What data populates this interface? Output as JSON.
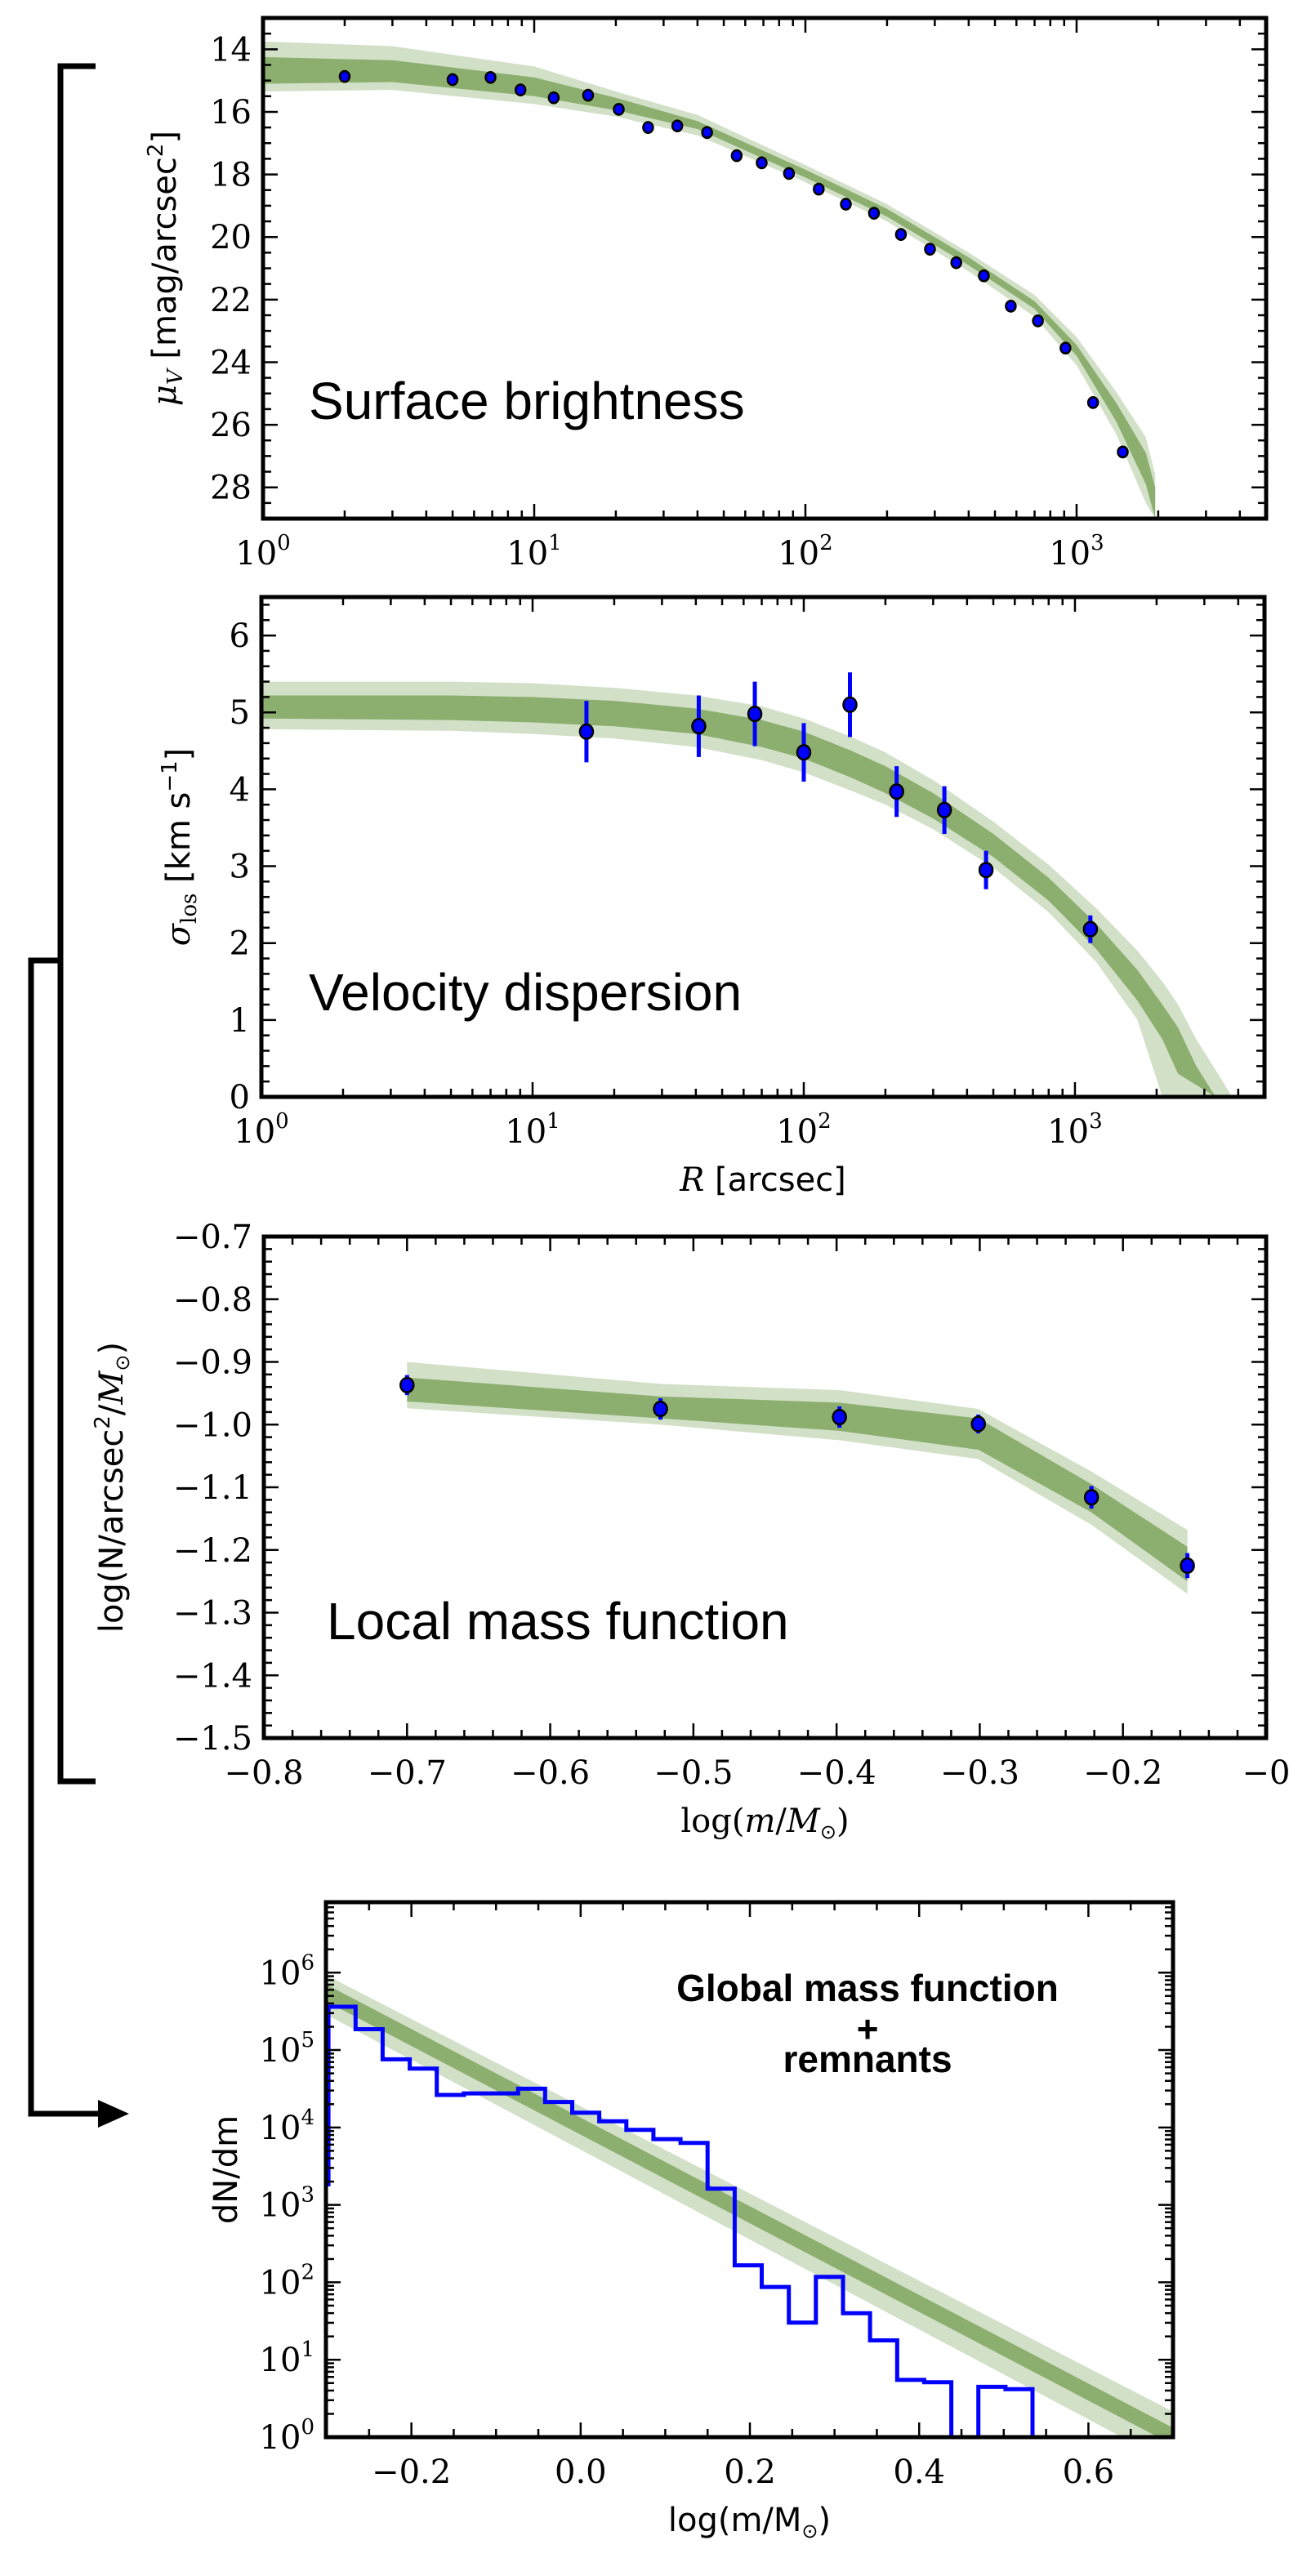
{
  "colors": {
    "band_outer": "#d2e0c8",
    "band_inner": "#8caf70",
    "points": "#0000ff",
    "histogram": "#0000ff",
    "axes": "#000000",
    "bracket": "#000000"
  },
  "chart_data": [
    {
      "id": "surface-brightness",
      "type": "scatter",
      "title": "Surface brightness",
      "xlabel": "",
      "ylabel": "μ_V [mag/arcsec²]",
      "ylabel_parts": {
        "sym": "μ",
        "sub": "V",
        "unit_pre": "[mag/arcsec",
        "unit_sup": "2",
        "unit_post": "]"
      },
      "xscale": "log",
      "xlim": [
        1,
        5000
      ],
      "ylim": [
        29,
        13
      ],
      "y_inverted": true,
      "xticks": [
        {
          "v": 1,
          "base": "10",
          "exp": "0"
        },
        {
          "v": 10,
          "base": "10",
          "exp": "1"
        },
        {
          "v": 100,
          "base": "10",
          "exp": "2"
        },
        {
          "v": 1000,
          "base": "10",
          "exp": "3"
        }
      ],
      "yticks": [
        14,
        16,
        18,
        20,
        22,
        24,
        26,
        28
      ],
      "points": {
        "x": [
          2.0,
          5.0,
          6.9,
          8.9,
          11.8,
          15.8,
          20.5,
          26.3,
          33.7,
          43.4,
          55.8,
          69,
          87,
          112,
          141,
          179,
          225,
          288,
          360,
          455,
          572,
          720,
          910,
          1150,
          1480
        ],
        "y": [
          14.87,
          14.97,
          14.9,
          15.3,
          15.55,
          15.47,
          15.92,
          16.5,
          16.45,
          16.66,
          17.4,
          17.63,
          17.97,
          18.47,
          18.95,
          19.24,
          19.92,
          20.39,
          20.82,
          21.24,
          22.21,
          22.68,
          23.55,
          25.29,
          26.87
        ]
      },
      "band": {
        "x": [
          1,
          3,
          10,
          20,
          40,
          100,
          200,
          400,
          700,
          1000,
          1400,
          1800,
          1950
        ],
        "inner_lo": [
          15.1,
          15.05,
          15.5,
          15.95,
          16.55,
          18.1,
          19.35,
          20.9,
          22.3,
          23.8,
          25.9,
          27.9,
          29.0
        ],
        "inner_hi": [
          14.25,
          14.35,
          14.9,
          15.55,
          16.3,
          17.85,
          19.1,
          20.65,
          22.05,
          23.45,
          25.3,
          26.9,
          28.0
        ],
        "outer_lo": [
          15.35,
          15.3,
          15.75,
          16.15,
          16.75,
          18.25,
          19.5,
          21.1,
          22.55,
          24.1,
          26.3,
          28.5,
          29.0
        ],
        "outer_hi": [
          13.75,
          13.9,
          14.55,
          15.35,
          16.1,
          17.7,
          18.95,
          20.5,
          21.85,
          23.2,
          24.95,
          26.4,
          27.6
        ]
      }
    },
    {
      "id": "velocity-dispersion",
      "type": "scatter",
      "title": "Velocity dispersion",
      "xlabel": "R [arcsec]",
      "xlabel_parts": {
        "sym": "R",
        "unit": "[arcsec]"
      },
      "ylabel": "σ_los [km s⁻¹]",
      "ylabel_parts": {
        "sym": "σ",
        "sub": "los",
        "unit_pre": "[km s",
        "unit_sup": "−1",
        "unit_post": "]"
      },
      "xscale": "log",
      "xlim": [
        1,
        5000
      ],
      "ylim": [
        0,
        6.5
      ],
      "xticks": [
        {
          "v": 1,
          "base": "10",
          "exp": "0"
        },
        {
          "v": 10,
          "base": "10",
          "exp": "1"
        },
        {
          "v": 100,
          "base": "10",
          "exp": "2"
        },
        {
          "v": 1000,
          "base": "10",
          "exp": "3"
        }
      ],
      "yticks": [
        0,
        1,
        2,
        3,
        4,
        5,
        6
      ],
      "points": {
        "x": [
          15.8,
          41,
          66,
          100,
          148,
          220,
          330,
          470,
          1140
        ],
        "y": [
          4.75,
          4.82,
          4.98,
          4.48,
          5.1,
          3.97,
          3.73,
          2.95,
          2.18
        ],
        "err": [
          0.4,
          0.4,
          0.42,
          0.38,
          0.42,
          0.33,
          0.31,
          0.25,
          0.18
        ]
      },
      "band": {
        "x": [
          1,
          5,
          10,
          20,
          40,
          70,
          100,
          150,
          200,
          300,
          500,
          800,
          1200,
          1700,
          2100,
          2400,
          2800,
          3300,
          3800
        ],
        "inner_lo": [
          4.92,
          4.9,
          4.87,
          4.82,
          4.72,
          4.55,
          4.4,
          4.15,
          3.95,
          3.62,
          3.12,
          2.55,
          1.92,
          1.25,
          0.75,
          0.3,
          null,
          null,
          null
        ],
        "inner_hi": [
          5.22,
          5.22,
          5.2,
          5.15,
          5.05,
          4.9,
          4.75,
          4.5,
          4.3,
          3.95,
          3.42,
          2.85,
          2.25,
          1.65,
          1.2,
          0.9,
          0.4,
          0.0,
          null
        ],
        "outer_lo": [
          4.78,
          4.76,
          4.72,
          4.66,
          4.55,
          4.38,
          4.22,
          3.98,
          3.8,
          3.48,
          2.98,
          2.4,
          1.75,
          1.0,
          0.0,
          null,
          null,
          null,
          null
        ],
        "outer_hi": [
          5.4,
          5.4,
          5.38,
          5.32,
          5.22,
          5.08,
          4.92,
          4.68,
          4.48,
          4.12,
          3.58,
          3.02,
          2.45,
          1.9,
          1.5,
          1.2,
          0.75,
          0.35,
          0.0
        ]
      }
    },
    {
      "id": "local-mass-function",
      "type": "scatter",
      "title": "Local mass function",
      "xlabel": "log(m/M☉)",
      "xlabel_parts": {
        "pre": "log(",
        "sym": "m",
        "mid": "/",
        "sym2": "M",
        "post": ")"
      },
      "ylabel": "log(N/arcsec²/M☉)",
      "ylabel_parts": {
        "pre": "log(N/arcsec",
        "sup": "2",
        "mid": "/",
        "sym": "M",
        "post": ")"
      },
      "xlim": [
        -0.8,
        -0.1
      ],
      "ylim": [
        -1.5,
        -0.7
      ],
      "xticks": [
        {
          "v": -0.8,
          "label": "−0.8"
        },
        {
          "v": -0.7,
          "label": "−0.7"
        },
        {
          "v": -0.6,
          "label": "−0.6"
        },
        {
          "v": -0.5,
          "label": "−0.5"
        },
        {
          "v": -0.4,
          "label": "−0.4"
        },
        {
          "v": -0.3,
          "label": "−0.3"
        },
        {
          "v": -0.2,
          "label": "−0.2"
        },
        {
          "v": -0.1,
          "label": "−0"
        }
      ],
      "yticks": [
        {
          "v": -0.7,
          "label": "−0.7"
        },
        {
          "v": -0.8,
          "label": "−0.8"
        },
        {
          "v": -0.9,
          "label": "−0.9"
        },
        {
          "v": -1.0,
          "label": "−1.0"
        },
        {
          "v": -1.1,
          "label": "−1.1"
        },
        {
          "v": -1.2,
          "label": "−1.2"
        },
        {
          "v": -1.3,
          "label": "−1.3"
        },
        {
          "v": -1.4,
          "label": "−1.4"
        },
        {
          "v": -1.5,
          "label": "−1.5"
        }
      ],
      "points": {
        "x": [
          -0.7,
          -0.523,
          -0.398,
          -0.301,
          -0.222,
          -0.155
        ],
        "y": [
          -0.937,
          -0.975,
          -0.988,
          -0.999,
          -1.116,
          -1.225
        ],
        "err": [
          0.016,
          0.017,
          0.017,
          0.015,
          0.018,
          0.02
        ]
      },
      "band": {
        "x": [
          -0.7,
          -0.523,
          -0.398,
          -0.301,
          -0.222,
          -0.155
        ],
        "inner_lo": [
          -0.963,
          -0.99,
          -1.01,
          -1.04,
          -1.14,
          -1.25
        ],
        "inner_hi": [
          -0.925,
          -0.955,
          -0.965,
          -0.99,
          -1.095,
          -1.195
        ],
        "outer_lo": [
          -0.974,
          -1.0,
          -1.025,
          -1.055,
          -1.16,
          -1.27
        ],
        "outer_hi": [
          -0.9,
          -0.935,
          -0.945,
          -0.975,
          -1.075,
          -1.168
        ]
      }
    },
    {
      "id": "global-mass-function",
      "type": "line",
      "title": "Global mass function\n+\nremnants",
      "title_lines": [
        "Global mass function",
        "+",
        "remnants"
      ],
      "xlabel": "log(m/M☉)",
      "xlabel_parts": {
        "pre": "log(m/M",
        "post": ")"
      },
      "ylabel": "dN/dm",
      "xlim": [
        -0.301,
        0.7
      ],
      "yscale": "log",
      "ylim_log10": [
        0,
        6.91
      ],
      "xticks": [
        {
          "v": -0.2,
          "label": "−0.2"
        },
        {
          "v": 0.0,
          "label": "0.0"
        },
        {
          "v": 0.2,
          "label": "0.2"
        },
        {
          "v": 0.4,
          "label": "0.4"
        },
        {
          "v": 0.6,
          "label": "0.6"
        }
      ],
      "yticks": [
        {
          "v": 0,
          "base": "10",
          "exp": "0"
        },
        {
          "v": 1,
          "base": "10",
          "exp": "1"
        },
        {
          "v": 2,
          "base": "10",
          "exp": "2"
        },
        {
          "v": 3,
          "base": "10",
          "exp": "3"
        },
        {
          "v": 4,
          "base": "10",
          "exp": "4"
        },
        {
          "v": 5,
          "base": "10",
          "exp": "5"
        },
        {
          "v": 6,
          "base": "10",
          "exp": "6"
        }
      ],
      "histogram": {
        "bin_start": -0.298,
        "bin_width": 0.032,
        "log10_values": [
          5.56,
          5.27,
          4.88,
          4.76,
          4.42,
          4.44,
          4.44,
          4.5,
          4.33,
          4.19,
          4.08,
          3.97,
          3.85,
          3.8,
          3.21,
          2.22,
          1.94,
          1.48,
          2.07,
          1.6,
          1.25,
          0.74,
          0.71,
          null,
          0.65,
          0.62
        ],
        "first_edge_bottom_log10": 3.24
      },
      "band": {
        "x": [
          -0.301,
          0.7
        ],
        "inner_lo_log10": [
          5.63,
          -0.1
        ],
        "inner_hi_log10": [
          5.85,
          0.12
        ],
        "outer_lo_log10": [
          5.46,
          -0.35
        ],
        "outer_hi_log10": [
          5.97,
          0.33
        ]
      }
    }
  ]
}
